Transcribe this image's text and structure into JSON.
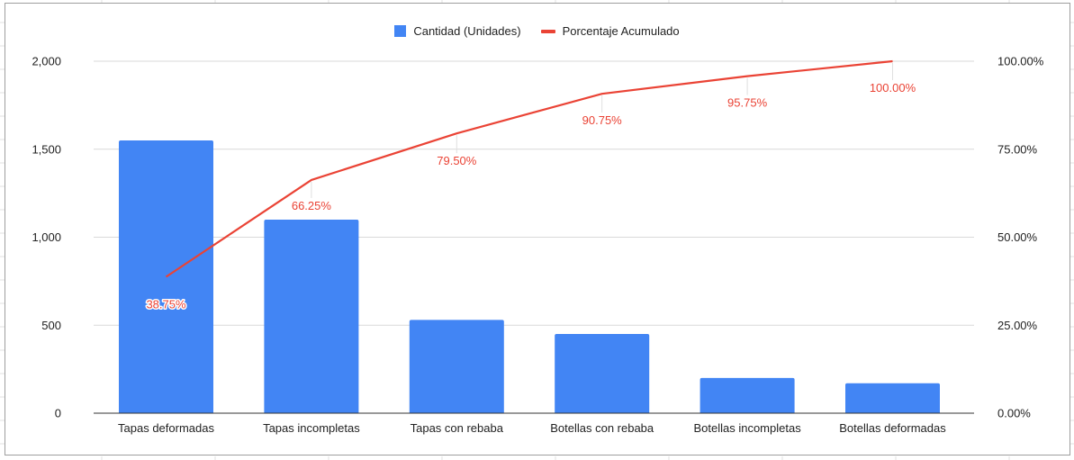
{
  "chart_data": {
    "type": "bar+line",
    "title": "",
    "categories": [
      "Tapas deformadas",
      "Tapas incompletas",
      "Tapas con rebaba",
      "Botellas con rebaba",
      "Botellas incompletas",
      "Botellas deformadas"
    ],
    "series": [
      {
        "name": "Cantidad (Unidades)",
        "type": "bar",
        "axis": "left",
        "color": "#4285f4",
        "values": [
          1550,
          1100,
          530,
          450,
          200,
          170
        ]
      },
      {
        "name": "Porcentaje Acumulado",
        "type": "line",
        "axis": "right",
        "color": "#ea4335",
        "values": [
          38.75,
          66.25,
          79.5,
          90.75,
          95.75,
          100.0
        ],
        "labels": [
          "38.75%",
          "66.25%",
          "79.50%",
          "90.75%",
          "95.75%",
          "100.00%"
        ]
      }
    ],
    "left_axis": {
      "ticks": [
        "0",
        "500",
        "1,000",
        "1,500",
        "2,000"
      ],
      "range": [
        0,
        2000
      ]
    },
    "right_axis": {
      "ticks": [
        "0.00%",
        "25.00%",
        "50.00%",
        "75.00%",
        "100.00%"
      ],
      "range": [
        0,
        100
      ]
    },
    "xlabel": "",
    "ylabel": "",
    "grid": true,
    "legend_position": "top"
  },
  "legend": {
    "bar_label": "Cantidad (Unidades)",
    "line_label": "Porcentaje Acumulado"
  }
}
